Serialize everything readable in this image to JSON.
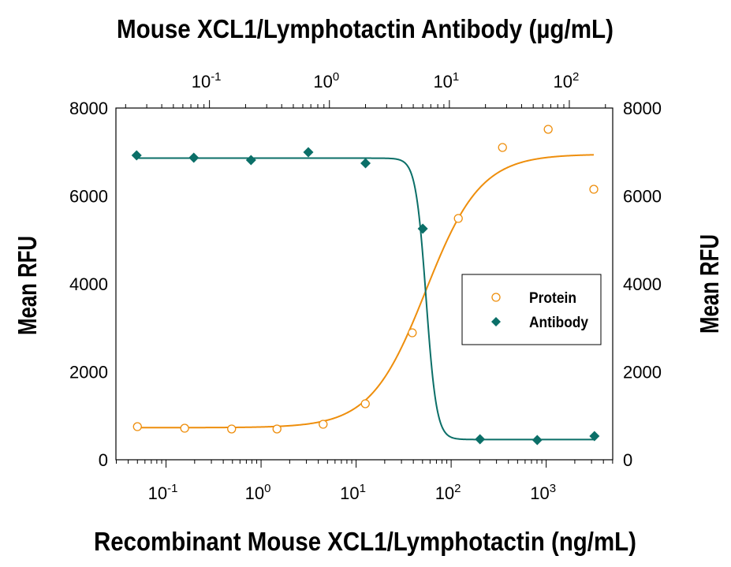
{
  "chart_data": {
    "type": "scatter",
    "title": "Mouse XCL1/Lymphotactin Antibody (µg/mL)",
    "xlabel": "Recombinant Mouse XCL1/Lymphotactin (ng/mL)",
    "ylabel": "Mean RFU",
    "ylabel_right": "Mean RFU",
    "x_scale": "log",
    "x_top_scale": "log",
    "xlim": [
      0.0297,
      5012
    ],
    "x_top_lim": [
      0.0166,
      230
    ],
    "ylim": [
      0,
      8000
    ],
    "x_ticks": [
      {
        "base": "10",
        "exp": "-1"
      },
      {
        "base": "10",
        "exp": "0"
      },
      {
        "base": "10",
        "exp": "1"
      },
      {
        "base": "10",
        "exp": "2"
      },
      {
        "base": "10",
        "exp": "3"
      }
    ],
    "x_top_ticks": [
      {
        "base": "10",
        "exp": "-1"
      },
      {
        "base": "10",
        "exp": "0"
      },
      {
        "base": "10",
        "exp": "1"
      },
      {
        "base": "10",
        "exp": "2"
      }
    ],
    "y_ticks": [
      "0",
      "2000",
      "4000",
      "6000",
      "8000"
    ],
    "grid": false,
    "legend_placement": "right-center",
    "series": [
      {
        "name": "Protein",
        "axis": "bottom",
        "marker": "open-circle",
        "color": "#EE8E0C",
        "x": [
          0.05,
          0.157,
          0.49,
          1.47,
          4.5,
          12.5,
          39,
          119,
          347,
          1050,
          3170
        ],
        "y": [
          753,
          717,
          700,
          700,
          807,
          1274,
          2888,
          5489,
          7103,
          7516,
          6152
        ],
        "fit": {
          "bottom": 730,
          "top": 6950,
          "ec50": 54,
          "hill": 1.5
        }
      },
      {
        "name": "Antibody",
        "axis": "top",
        "marker": "filled-diamond",
        "color": "#0B6F68",
        "x": [
          0.0247,
          0.074,
          0.222,
          0.667,
          2,
          6,
          18,
          54,
          162
        ],
        "y": [
          6924,
          6871,
          6817,
          6996,
          6745,
          5256,
          466,
          448,
          538
        ],
        "fit": {
          "bottom": 460,
          "top": 6860,
          "ec50": 6.4,
          "hill": -10
        }
      }
    ]
  }
}
